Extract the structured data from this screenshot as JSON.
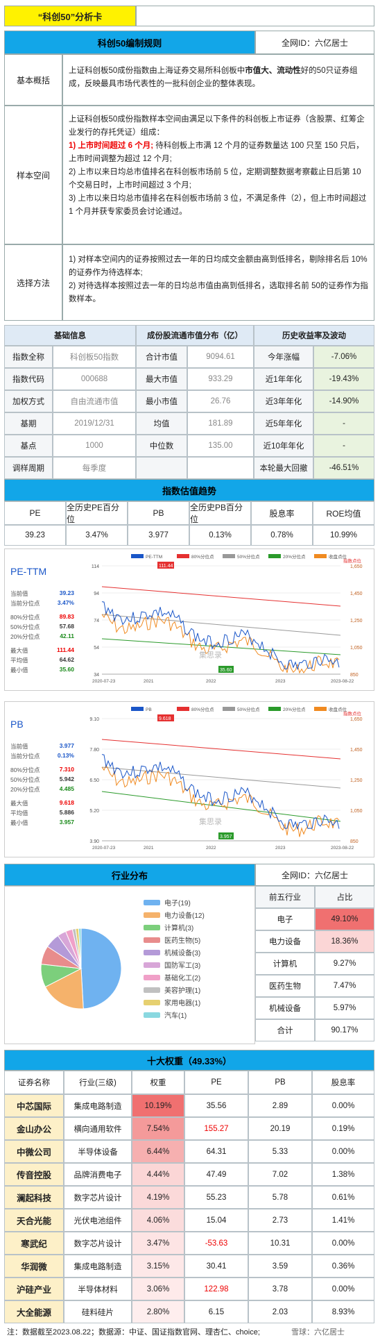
{
  "card": {
    "title": "“科创50”分析卡"
  },
  "rules": {
    "heading": "科创50编制规则",
    "author": "全网ID：六亿居士",
    "overview_label": "基本概括",
    "overview_text_1": "上证科创板50成份指数由上海证券交易所科创板中",
    "overview_text_bold": "市值大、流动性",
    "overview_text_2": "好的50只证券组成，反映最具市场代表性的一批科创企业的整体表现。",
    "sample_label": "样本空间",
    "sample_intro": "上证科创板50成份指数样本空间由满足以下条件的科创板上市证券（含股票、红筹企业发行的存托凭证）组成：",
    "sample_1_red": "1) 上市时间超过 6 个月;",
    "sample_1_rest": " 待科创板上市满 12 个月的证券数量达 100 只至 150 只后，上市时间调整为超过 12 个月;",
    "sample_2": "2) 上市以来日均总市值排名在科创板市场前 5 位，定期调整数据考察截止日后第 10 个交易日时，上市时间超过 3 个月;",
    "sample_3": "3) 上市以来日均总市值排名在科创板市场前 3 位，不满足条件（2），但上市时间超过 1 个月并获专家委员会讨论通过。",
    "method_label": "选择方法",
    "method_1": "1) 对样本空间内的证券按照过去一年的日均成交金额由高到低排名，剔除排名后 10%的证券作为待选样本;",
    "method_2": "2) 对待选样本按照过去一年的日均总市值由高到低排名，选取排名前 50的证券作为指数样本。"
  },
  "basic": {
    "headers": [
      "基础信息",
      "成份股流通市值分布（亿）",
      "历史收益率及波动"
    ],
    "rows": [
      [
        "指数全称",
        "科创板50指数",
        "合计市值",
        "9094.61",
        "今年涨幅",
        "-7.06%"
      ],
      [
        "指数代码",
        "000688",
        "最大市值",
        "933.29",
        "近1年年化",
        "-19.43%"
      ],
      [
        "加权方式",
        "自由流通市值",
        "最小市值",
        "26.76",
        "近3年年化",
        "-14.90%"
      ],
      [
        "基期",
        "2019/12/31",
        "均值",
        "181.89",
        "近5年年化",
        "-"
      ],
      [
        "基点",
        "1000",
        "中位数",
        "135.00",
        "近10年年化",
        "-"
      ],
      [
        "调样周期",
        "每季度",
        "",
        "",
        "本轮最大回撤",
        "-46.51%"
      ]
    ]
  },
  "valuation": {
    "heading": "指数估值趋势",
    "headers": [
      "PE",
      "全历史PE百分位",
      "PB",
      "全历史PB百分位",
      "股息率",
      "ROE均值"
    ],
    "values": [
      "39.23",
      "3.47%",
      "3.977",
      "0.13%",
      "0.78%",
      "10.99%"
    ]
  },
  "pe_chart": {
    "title": "PE-TTM",
    "legend": [
      "PE-TTM",
      "80%分位点",
      "50%分位点",
      "20%分位点",
      "收盘点位"
    ],
    "right_note": "指数点位",
    "stats": [
      [
        "当前值",
        "39.23"
      ],
      [
        "当前分位点",
        "3.47%"
      ],
      [
        "80%分位点",
        "89.83"
      ],
      [
        "50%分位点",
        "57.68"
      ],
      [
        "20%分位点",
        "42.11"
      ],
      [
        "最大值",
        "111.44"
      ],
      [
        "平均值",
        "64.62"
      ],
      [
        "最小值",
        "35.60"
      ]
    ],
    "y_left": [
      "114",
      "94",
      "74",
      "54",
      "34"
    ],
    "y_right": [
      "1,650",
      "1,450",
      "1,250",
      "1,050",
      "850"
    ],
    "x": [
      "2020-07-23",
      "2021",
      "2022",
      "2023",
      "2023-08-22"
    ],
    "max_label": "111.44",
    "min_label": "35.60",
    "watermark": "集思录"
  },
  "pb_chart": {
    "title": "PB",
    "legend": [
      "PB",
      "80%分位点",
      "50%分位点",
      "20%分位点",
      "收盘点位"
    ],
    "right_note": "指数点位",
    "stats": [
      [
        "当前值",
        "3.977"
      ],
      [
        "当前分位点",
        "0.13%"
      ],
      [
        "80%分位点",
        "7.310"
      ],
      [
        "50%分位点",
        "5.942"
      ],
      [
        "20%分位点",
        "4.485"
      ],
      [
        "最大值",
        "9.618"
      ],
      [
        "平均值",
        "5.886"
      ],
      [
        "最小值",
        "3.957"
      ]
    ],
    "y_left": [
      "9.10",
      "7.80",
      "6.50",
      "5.20",
      "3.90"
    ],
    "y_right": [
      "1,650",
      "1,450",
      "1,250",
      "1,050",
      "850"
    ],
    "x": [
      "2020-07-23",
      "2021",
      "2022",
      "2023",
      "2023-08-22"
    ],
    "max_label": "9.618",
    "min_label": "3.957",
    "watermark": "集思录"
  },
  "industry": {
    "heading": "行业分布",
    "author": "全网ID：六亿居士",
    "legend": [
      "电子(19)",
      "电力设备(12)",
      "计算机(3)",
      "医药生物(5)",
      "机械设备(3)",
      "国防军工(3)",
      "基础化工(2)",
      "美容护理(1)",
      "家用电器(1)",
      "汽车(1)"
    ],
    "colors": [
      "#6fb2f0",
      "#f5b26b",
      "#7ccf7c",
      "#e88c8c",
      "#b49ad8",
      "#d8a6d8",
      "#f0a0c8",
      "#c0c0c0",
      "#e6d070",
      "#8ad8e0"
    ],
    "top_headers": [
      "前五行业",
      "占比"
    ],
    "top": [
      [
        "电子",
        "49.10%"
      ],
      [
        "电力设备",
        "18.36%"
      ],
      [
        "计算机",
        "9.27%"
      ],
      [
        "医药生物",
        "7.47%"
      ],
      [
        "机械设备",
        "5.97%"
      ],
      [
        "合计",
        "90.17%"
      ]
    ]
  },
  "chart_data": {
    "type": "pie",
    "categories": [
      "电子",
      "电力设备",
      "计算机",
      "医药生物",
      "机械设备",
      "国防军工",
      "基础化工",
      "美容护理",
      "家用电器",
      "汽车"
    ],
    "values": [
      49.1,
      18.36,
      9.27,
      7.47,
      5.97,
      3.5,
      2.8,
      1.3,
      1.2,
      1.0
    ],
    "counts": [
      19,
      12,
      3,
      5,
      3,
      3,
      2,
      1,
      1,
      1
    ],
    "title": "",
    "legend": "right"
  },
  "top10": {
    "heading": "十大权重（49.33%）",
    "headers": [
      "证券名称",
      "行业(三级)",
      "权重",
      "PE",
      "PB",
      "股息率"
    ],
    "rows": [
      [
        "中芯国际",
        "集成电路制造",
        "10.19%",
        "35.56",
        "2.89",
        "0.00%"
      ],
      [
        "金山办公",
        "横向通用软件",
        "7.54%",
        "155.27",
        "20.19",
        "0.19%"
      ],
      [
        "中微公司",
        "半导体设备",
        "6.44%",
        "64.31",
        "5.33",
        "0.00%"
      ],
      [
        "传音控股",
        "品牌消费电子",
        "4.44%",
        "47.49",
        "7.02",
        "1.38%"
      ],
      [
        "澜起科技",
        "数字芯片设计",
        "4.19%",
        "55.23",
        "5.78",
        "0.61%"
      ],
      [
        "天合光能",
        "光伏电池组件",
        "4.06%",
        "15.04",
        "2.73",
        "1.41%"
      ],
      [
        "寒武纪",
        "数字芯片设计",
        "3.47%",
        "-53.63",
        "10.31",
        "0.00%"
      ],
      [
        "华润微",
        "集成电路制造",
        "3.15%",
        "30.41",
        "3.59",
        "0.36%"
      ],
      [
        "沪硅产业",
        "半导体材料",
        "3.06%",
        "122.98",
        "3.78",
        "0.00%"
      ],
      [
        "大全能源",
        "硅料硅片",
        "2.80%",
        "6.15",
        "2.03",
        "8.93%"
      ]
    ],
    "weight_colors": [
      "#f07070",
      "#f49a9a",
      "#f6b0b0",
      "#fbd6d6",
      "#fbd9d9",
      "#fbdcdc",
      "#fde4e4",
      "#fde8e8",
      "#feeaea",
      "#feeeee"
    ],
    "pe_red": [
      false,
      true,
      false,
      false,
      false,
      false,
      true,
      false,
      true,
      false
    ]
  },
  "footer": {
    "note": "注：数据截至2023.08.22；数据源：中证、国证指数官网、理杏仁、choice;",
    "brand": "雪球：六亿居士"
  }
}
